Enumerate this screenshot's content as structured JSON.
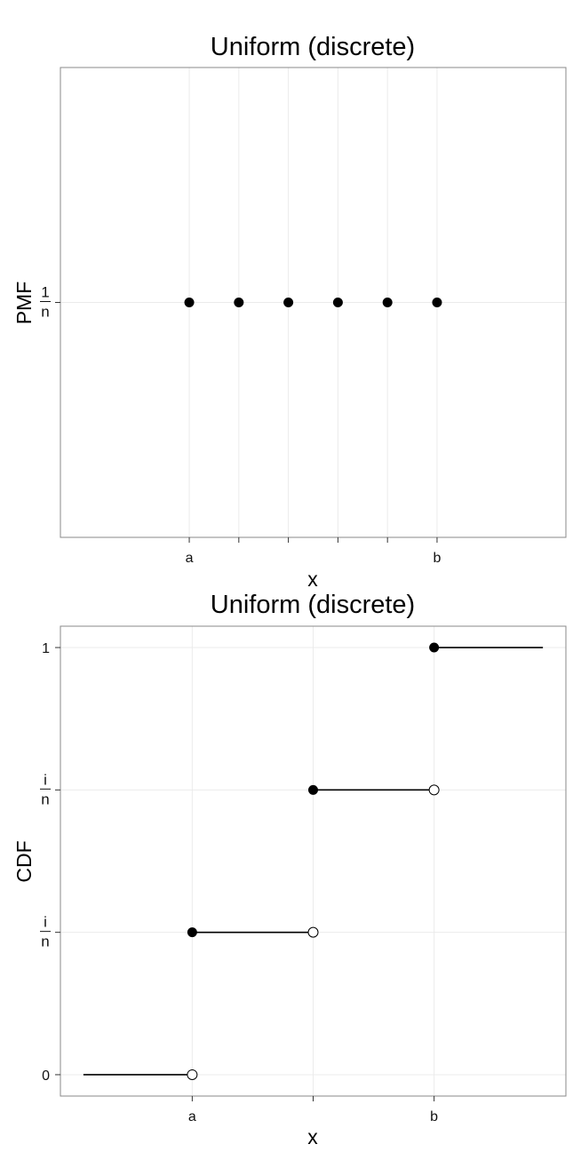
{
  "chart_data": [
    {
      "type": "scatter",
      "title": "Uniform (discrete)",
      "xlabel": "x",
      "ylabel": "PMF",
      "x_tick_labels": [
        "a",
        "",
        "",
        "",
        "",
        "b"
      ],
      "y_tick_labels": [
        {
          "num": "1",
          "den": "n"
        }
      ],
      "points": [
        {
          "x": 1,
          "y": 1
        },
        {
          "x": 2,
          "y": 1
        },
        {
          "x": 3,
          "y": 1
        },
        {
          "x": 4,
          "y": 1
        },
        {
          "x": 5,
          "y": 1
        },
        {
          "x": 6,
          "y": 1
        }
      ],
      "xlim": [
        -1.6,
        8.6
      ],
      "ylim": [
        0,
        2
      ],
      "grid": true,
      "point_color": "#000000"
    },
    {
      "type": "step",
      "title": "Uniform (discrete)",
      "xlabel": "x",
      "ylabel": "CDF",
      "x_tick_labels": [
        "a",
        "",
        "b"
      ],
      "y_tick_labels": [
        {
          "text": "0"
        },
        {
          "num": "i",
          "den": "n"
        },
        {
          "num": "i",
          "den": "n"
        },
        {
          "text": "1"
        }
      ],
      "steps": [
        {
          "x_start": -0.9,
          "x_end": 0,
          "level": 0,
          "closed_start": false,
          "open_end": true
        },
        {
          "x_start": 0,
          "x_end": 1,
          "level": 1,
          "closed_start": true,
          "open_end": true
        },
        {
          "x_start": 1,
          "x_end": 2,
          "level": 2,
          "closed_start": true,
          "open_end": true
        },
        {
          "x_start": 2,
          "x_end": 2.9,
          "level": 3,
          "closed_start": true,
          "open_end": false
        }
      ],
      "xlim": [
        -1.09,
        3.09
      ],
      "ylim": [
        -0.15,
        3.15
      ],
      "grid": true,
      "line_color": "#000000"
    }
  ]
}
